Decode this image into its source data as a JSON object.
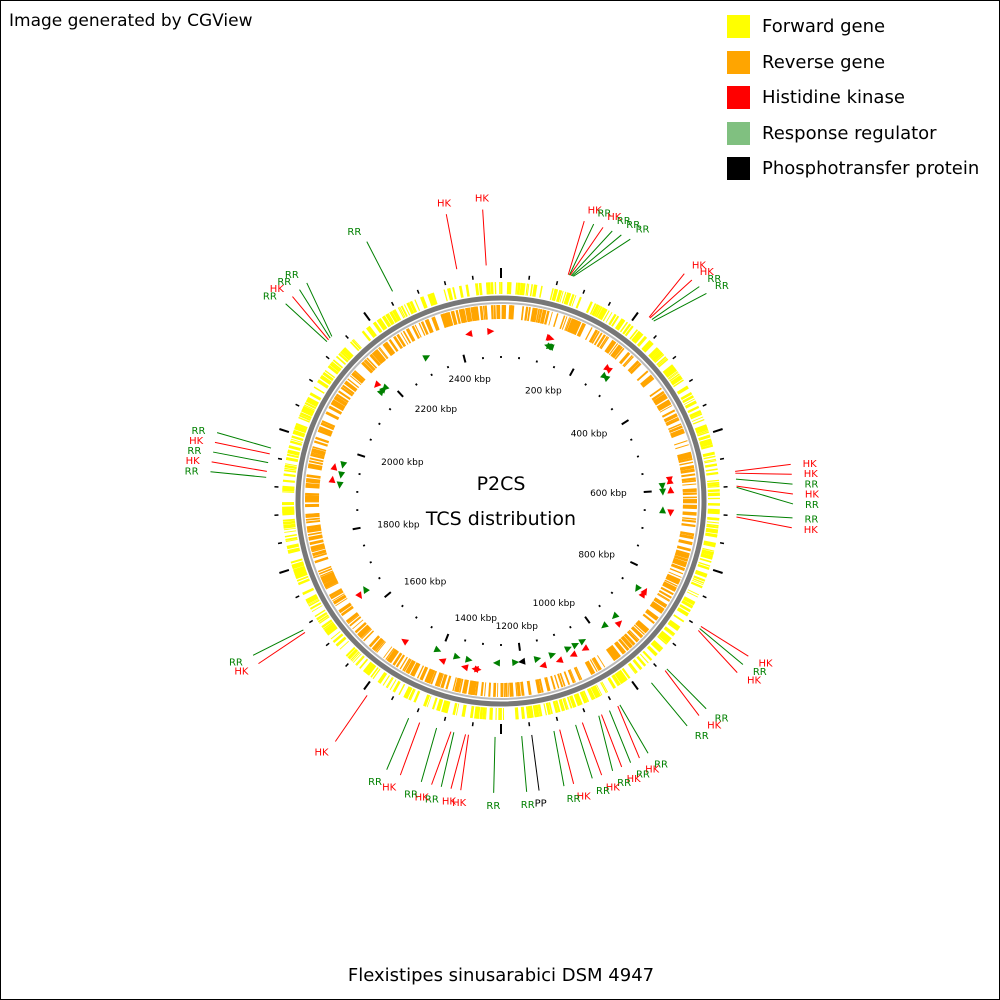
{
  "credit": "Image generated by CGView",
  "legend": [
    {
      "label": "Forward gene",
      "color": "#ffff00",
      "icon": "square-swatch"
    },
    {
      "label": "Reverse gene",
      "color": "#ffa500",
      "icon": "square-swatch"
    },
    {
      "label": "Histidine kinase",
      "color": "#ff0000",
      "icon": "square-swatch"
    },
    {
      "label": "Response regulator",
      "color": "#80c080",
      "icon": "square-swatch"
    },
    {
      "label": "Phosphotransfer protein",
      "color": "#000000",
      "icon": "square-swatch"
    }
  ],
  "center": {
    "line1": "P2CS",
    "line2": "TCS distribution"
  },
  "organism": "Flexistipes sinusarabici DSM 4947",
  "genome": {
    "length_kbp": 2500,
    "tick_labels": [
      {
        "kbp": 200,
        "text": "200 kbp"
      },
      {
        "kbp": 400,
        "text": "400 kbp"
      },
      {
        "kbp": 600,
        "text": "600 kbp"
      },
      {
        "kbp": 800,
        "text": "800 kbp"
      },
      {
        "kbp": 1000,
        "text": "1000 kbp"
      },
      {
        "kbp": 1200,
        "text": "1200 kbp"
      },
      {
        "kbp": 1400,
        "text": "1400 kbp"
      },
      {
        "kbp": 1600,
        "text": "1600 kbp"
      },
      {
        "kbp": 1800,
        "text": "1800 kbp"
      },
      {
        "kbp": 2000,
        "text": "2000 kbp"
      },
      {
        "kbp": 2200,
        "text": "2200 kbp"
      },
      {
        "kbp": 2400,
        "text": "2400 kbp"
      }
    ]
  },
  "features": [
    {
      "type": "HK",
      "kbp": 115
    },
    {
      "type": "RR",
      "kbp": 117
    },
    {
      "type": "RR",
      "kbp": 122
    },
    {
      "type": "HK",
      "kbp": 118
    },
    {
      "type": "RR",
      "kbp": 120
    },
    {
      "type": "RR",
      "kbp": 124
    },
    {
      "type": "HK",
      "kbp": 270
    },
    {
      "type": "HK",
      "kbp": 272
    },
    {
      "type": "RR",
      "kbp": 276
    },
    {
      "type": "RR",
      "kbp": 280
    },
    {
      "type": "HK",
      "kbp": 575
    },
    {
      "type": "HK",
      "kbp": 578
    },
    {
      "type": "RR",
      "kbp": 588
    },
    {
      "type": "HK",
      "kbp": 600
    },
    {
      "type": "RR",
      "kbp": 602
    },
    {
      "type": "RR",
      "kbp": 648
    },
    {
      "type": "HK",
      "kbp": 652
    },
    {
      "type": "HK",
      "kbp": 848
    },
    {
      "type": "RR",
      "kbp": 852
    },
    {
      "type": "HK",
      "kbp": 856
    },
    {
      "type": "RR",
      "kbp": 940
    },
    {
      "type": "HK",
      "kbp": 944
    },
    {
      "type": "RR",
      "kbp": 975
    },
    {
      "type": "RR",
      "kbp": 1040
    },
    {
      "type": "HK",
      "kbp": 1044
    },
    {
      "type": "RR",
      "kbp": 1060
    },
    {
      "type": "HK",
      "kbp": 1075
    },
    {
      "type": "RR",
      "kbp": 1080
    },
    {
      "type": "HK",
      "kbp": 1110
    },
    {
      "type": "RR",
      "kbp": 1122
    },
    {
      "type": "HK",
      "kbp": 1150
    },
    {
      "type": "RR",
      "kbp": 1160
    },
    {
      "type": "PP",
      "kbp": 1198
    },
    {
      "type": "RR",
      "kbp": 1215
    },
    {
      "type": "RR",
      "kbp": 1260
    },
    {
      "type": "HK",
      "kbp": 1305
    },
    {
      "type": "HK",
      "kbp": 1310
    },
    {
      "type": "RR",
      "kbp": 1330
    },
    {
      "type": "HK",
      "kbp": 1335
    },
    {
      "type": "RR",
      "kbp": 1360
    },
    {
      "type": "HK",
      "kbp": 1390
    },
    {
      "type": "RR",
      "kbp": 1410
    },
    {
      "type": "HK",
      "kbp": 1490
    },
    {
      "type": "HK",
      "kbp": 1640
    },
    {
      "type": "RR",
      "kbp": 1645
    },
    {
      "type": "RR",
      "kbp": 1915
    },
    {
      "type": "HK",
      "kbp": 1925
    },
    {
      "type": "RR",
      "kbp": 1940
    },
    {
      "type": "HK",
      "kbp": 1955
    },
    {
      "type": "RR",
      "kbp": 1965
    },
    {
      "type": "RR",
      "kbp": 2170
    },
    {
      "type": "HK",
      "kbp": 2174
    },
    {
      "type": "RR",
      "kbp": 2178
    },
    {
      "type": "RR",
      "kbp": 2182
    },
    {
      "type": "RR",
      "kbp": 2310
    },
    {
      "type": "HK",
      "kbp": 2425
    },
    {
      "type": "HK",
      "kbp": 2475
    }
  ],
  "feature_colors": {
    "HK": "#ff0000",
    "RR": "#008000",
    "PP": "#000000"
  },
  "track_colors": {
    "forward": "#ffff00",
    "reverse": "#ffa500",
    "backbone": "#808080"
  }
}
